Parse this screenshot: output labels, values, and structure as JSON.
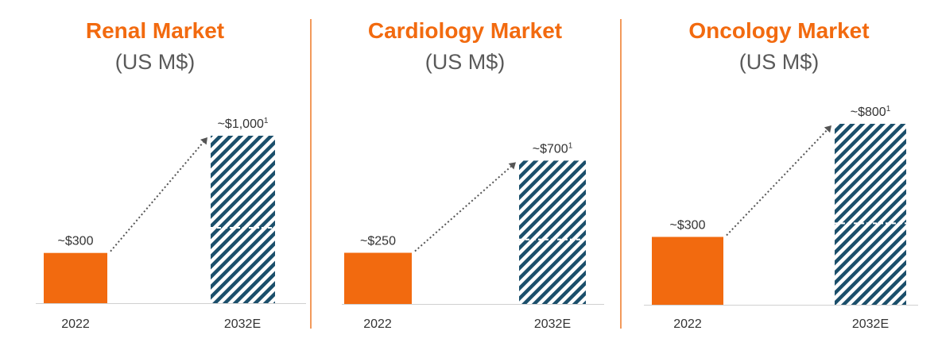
{
  "colors": {
    "accent": "#F26A0F",
    "hatch": "#1B4F6B",
    "text": "#333333",
    "subtitle": "#5A5A5A",
    "axis": "#D0D0D0",
    "arrow": "#555555",
    "divider": "#F29A5C"
  },
  "chart_data": [
    {
      "type": "bar",
      "title": "Renal Market",
      "subtitle": "(US M$)",
      "categories": [
        "2022",
        "2032E"
      ],
      "values": [
        300,
        1000
      ],
      "labels": [
        "~$300",
        "~$1,000"
      ],
      "label_footnotes": [
        "",
        "1"
      ],
      "styles": [
        "solid",
        "hatched"
      ],
      "ylim": [
        0,
        1000
      ]
    },
    {
      "type": "bar",
      "title": "Cardiology Market",
      "subtitle": "(US M$)",
      "categories": [
        "2022",
        "2032E"
      ],
      "values": [
        250,
        700
      ],
      "labels": [
        "~$250",
        "~$700"
      ],
      "label_footnotes": [
        "",
        "1"
      ],
      "styles": [
        "solid",
        "hatched"
      ],
      "ylim": [
        0,
        1000
      ]
    },
    {
      "type": "bar",
      "title": "Oncology Market",
      "subtitle": "(US M$)",
      "categories": [
        "2022",
        "2032E"
      ],
      "values": [
        300,
        800
      ],
      "labels": [
        "~$300",
        "~$800"
      ],
      "label_footnotes": [
        "",
        "1"
      ],
      "styles": [
        "solid",
        "hatched"
      ],
      "ylim": [
        0,
        1000
      ]
    }
  ]
}
